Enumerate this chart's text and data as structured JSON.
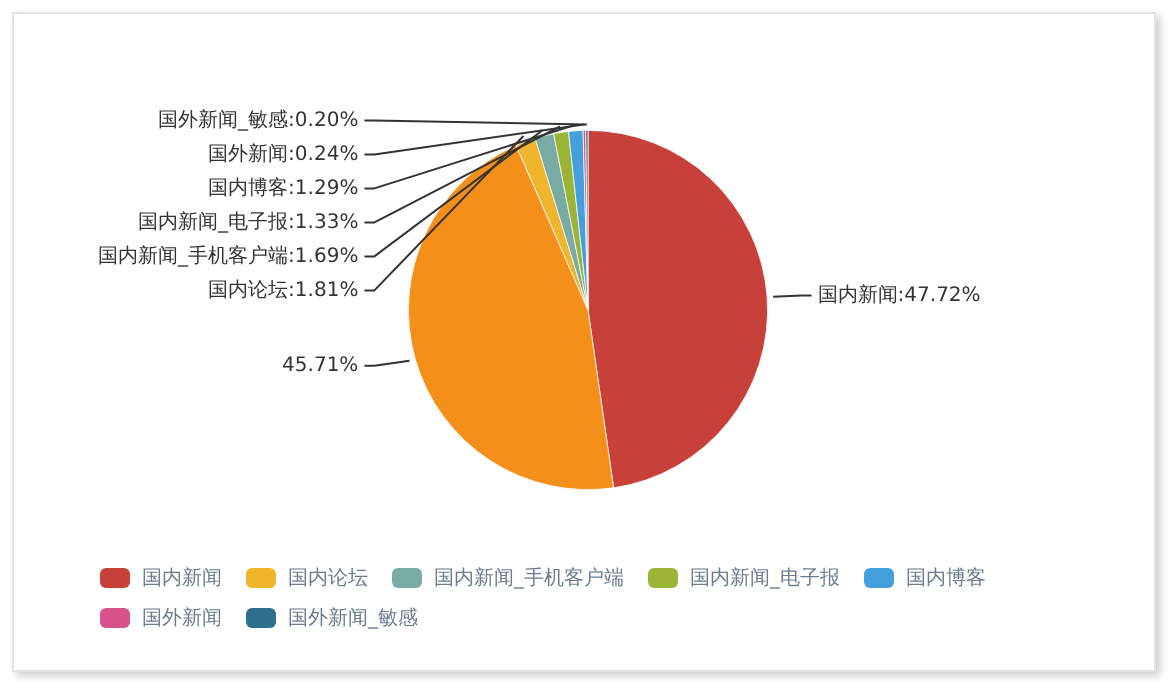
{
  "chart_data": {
    "type": "pie",
    "categories": [
      "国内新闻",
      null,
      "国内论坛",
      "国内新闻_手机客户端",
      "国内新闻_电子报",
      "国内博客",
      "国外新闻",
      "国外新闻_敏感"
    ],
    "values": [
      47.72,
      45.71,
      1.81,
      1.69,
      1.33,
      1.29,
      0.24,
      0.2
    ],
    "value_labels": [
      ":47.72%",
      "45.71%",
      ":1.81%",
      ":1.69%",
      ":1.33%",
      ":1.29%",
      ":0.24%",
      ":0.20%"
    ],
    "colors": [
      "#c8403a",
      "#f49019",
      "#efb52c",
      "#78aba3",
      "#9cb436",
      "#44a0dc",
      "#d9518a",
      "#2d6f8c"
    ],
    "legend": "bottom"
  }
}
